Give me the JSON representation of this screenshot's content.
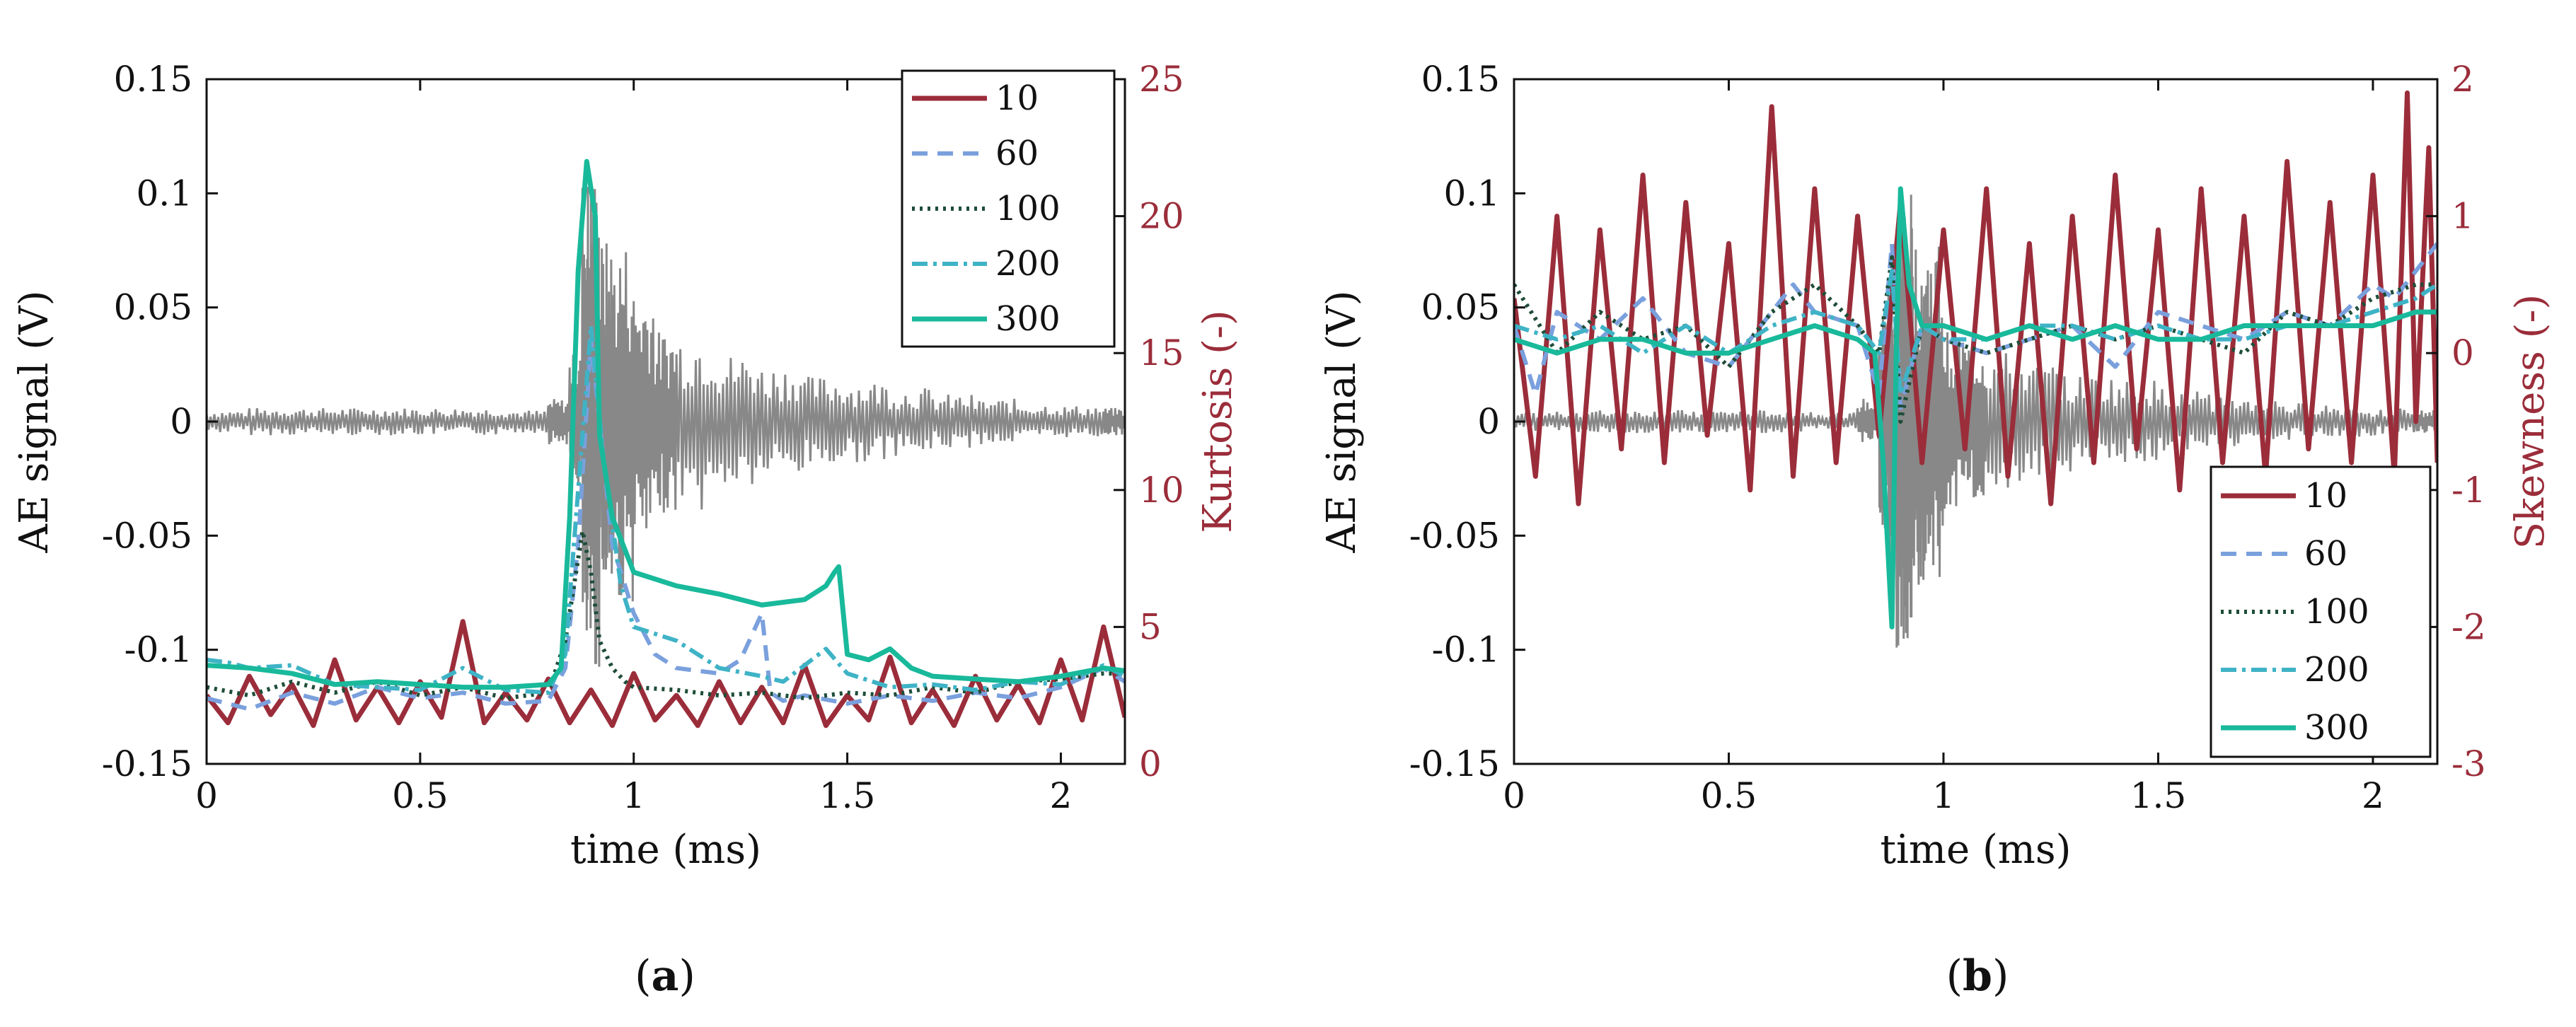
{
  "chart_data": [
    {
      "type": "line",
      "panel_label": "a",
      "panel_label_text": "(a)",
      "xlabel": "time (ms)",
      "ylabel": "AE signal (V)",
      "y2label": "Kurtosis (-)",
      "xlim": [
        0,
        2.15
      ],
      "ylim": [
        -0.15,
        0.15
      ],
      "y2lim": [
        0,
        25
      ],
      "xticks": [
        {
          "v": 0,
          "t": "0"
        },
        {
          "v": 0.5,
          "t": "0.5"
        },
        {
          "v": 1,
          "t": "1"
        },
        {
          "v": 1.5,
          "t": "1.5"
        },
        {
          "v": 2,
          "t": "2"
        }
      ],
      "yticks": [
        {
          "v": -0.15,
          "t": "-0.15"
        },
        {
          "v": -0.1,
          "t": "-0.1"
        },
        {
          "v": -0.05,
          "t": "-0.05"
        },
        {
          "v": 0,
          "t": "0"
        },
        {
          "v": 0.05,
          "t": "0.05"
        },
        {
          "v": 0.1,
          "t": "0.1"
        },
        {
          "v": 0.15,
          "t": "0.15"
        }
      ],
      "y2ticks": [
        {
          "v": 0,
          "t": "0"
        },
        {
          "v": 5,
          "t": "5"
        },
        {
          "v": 10,
          "t": "10"
        },
        {
          "v": 15,
          "t": "15"
        },
        {
          "v": 20,
          "t": "20"
        },
        {
          "v": 25,
          "t": "25"
        }
      ],
      "legend_position": "top-right",
      "ae_signal": {
        "name": "AE signal",
        "color": "#888888",
        "x": [
          0,
          0.1,
          0.2,
          0.3,
          0.4,
          0.5,
          0.6,
          0.7,
          0.8,
          0.85,
          0.88,
          0.9,
          0.92,
          0.95,
          1.0,
          1.05,
          1.1,
          1.2,
          1.3,
          1.4,
          1.5,
          1.6,
          1.7,
          1.8,
          1.9,
          2.0,
          2.1,
          2.15
        ],
        "y": [
          0,
          0.005,
          -0.006,
          0.006,
          -0.005,
          0.006,
          -0.006,
          0.005,
          -0.004,
          0.01,
          -0.03,
          0.11,
          -0.06,
          0.08,
          0.06,
          -0.04,
          0.04,
          -0.03,
          0.025,
          -0.02,
          0.018,
          -0.015,
          0.012,
          -0.01,
          0.008,
          -0.007,
          0.006,
          0
        ]
      },
      "series": [
        {
          "name": "10",
          "color": "#9b2d3a",
          "dash": "",
          "width": 7,
          "x": [
            0,
            0.05,
            0.1,
            0.15,
            0.2,
            0.25,
            0.3,
            0.35,
            0.4,
            0.45,
            0.5,
            0.55,
            0.6,
            0.65,
            0.7,
            0.75,
            0.8,
            0.85,
            0.9,
            0.95,
            1.0,
            1.05,
            1.1,
            1.15,
            1.2,
            1.25,
            1.3,
            1.35,
            1.4,
            1.45,
            1.5,
            1.55,
            1.6,
            1.65,
            1.7,
            1.75,
            1.8,
            1.85,
            1.9,
            1.95,
            2.0,
            2.05,
            2.1,
            2.15
          ],
          "y": [
            2.5,
            1.5,
            3.2,
            1.8,
            2.9,
            1.4,
            3.8,
            1.6,
            2.8,
            1.5,
            3.0,
            1.7,
            5.2,
            1.5,
            2.6,
            1.6,
            3.1,
            1.5,
            2.7,
            1.4,
            3.3,
            1.6,
            2.5,
            1.4,
            3.0,
            1.5,
            2.8,
            1.5,
            3.6,
            1.4,
            2.5,
            1.6,
            3.9,
            1.5,
            2.7,
            1.4,
            3.2,
            1.6,
            2.9,
            1.5,
            3.8,
            1.6,
            5.0,
            1.7
          ]
        },
        {
          "name": "60",
          "color": "#7aa0dd",
          "dash": "22,14",
          "width": 6,
          "x": [
            0,
            0.1,
            0.2,
            0.3,
            0.4,
            0.5,
            0.6,
            0.7,
            0.8,
            0.84,
            0.87,
            0.9,
            0.95,
            1.0,
            1.05,
            1.1,
            1.2,
            1.25,
            1.3,
            1.32,
            1.35,
            1.4,
            1.5,
            1.6,
            1.7,
            1.8,
            1.9,
            2.0,
            2.1,
            2.15
          ],
          "y": [
            2.4,
            2.0,
            2.6,
            2.2,
            2.8,
            2.4,
            2.6,
            2.2,
            2.3,
            3.5,
            8.0,
            15.5,
            8.0,
            5.5,
            4.0,
            3.5,
            3.3,
            3.8,
            5.5,
            2.6,
            2.3,
            2.5,
            2.2,
            2.5,
            2.3,
            2.6,
            2.4,
            2.8,
            3.5,
            3.0
          ]
        },
        {
          "name": "100",
          "color": "#1e4d38",
          "dash": "4,7",
          "width": 6,
          "x": [
            0,
            0.1,
            0.2,
            0.3,
            0.4,
            0.5,
            0.6,
            0.7,
            0.8,
            0.84,
            0.86,
            0.88,
            0.9,
            0.92,
            0.95,
            0.98,
            1.0,
            1.1,
            1.2,
            1.3,
            1.4,
            1.5,
            1.6,
            1.7,
            1.8,
            1.9,
            2.0,
            2.1,
            2.15
          ],
          "y": [
            2.8,
            2.5,
            3.0,
            2.6,
            3.0,
            2.5,
            2.8,
            2.4,
            2.6,
            4.5,
            6.5,
            8.5,
            7.0,
            4.5,
            3.5,
            3.0,
            2.8,
            2.7,
            2.5,
            2.6,
            2.4,
            2.6,
            2.5,
            2.8,
            2.6,
            3.0,
            3.1,
            3.3,
            3.3
          ]
        },
        {
          "name": "200",
          "color": "#3fb3c6",
          "dash": "22,8,5,8",
          "width": 6,
          "x": [
            0,
            0.05,
            0.1,
            0.2,
            0.3,
            0.4,
            0.5,
            0.6,
            0.7,
            0.8,
            0.84,
            0.87,
            0.9,
            0.93,
            0.97,
            1.0,
            1.1,
            1.2,
            1.3,
            1.35,
            1.4,
            1.45,
            1.5,
            1.6,
            1.7,
            1.8,
            1.9,
            2.0,
            2.1,
            2.15
          ],
          "y": [
            3.8,
            3.7,
            3.5,
            3.6,
            2.9,
            2.8,
            2.7,
            3.5,
            2.7,
            2.6,
            4.0,
            10.0,
            16.0,
            11.0,
            6.5,
            5.0,
            4.5,
            3.5,
            3.2,
            3.0,
            3.6,
            4.2,
            3.3,
            2.8,
            2.9,
            2.7,
            3.0,
            2.9,
            3.6,
            3.2
          ]
        },
        {
          "name": "300",
          "color": "#19b99b",
          "dash": "",
          "width": 7,
          "x": [
            0,
            0.1,
            0.2,
            0.3,
            0.4,
            0.5,
            0.6,
            0.7,
            0.8,
            0.83,
            0.85,
            0.87,
            0.89,
            0.91,
            0.92,
            0.95,
            1.0,
            1.1,
            1.2,
            1.3,
            1.4,
            1.45,
            1.47,
            1.48,
            1.5,
            1.55,
            1.6,
            1.65,
            1.7,
            1.8,
            1.9,
            2.0,
            2.1,
            2.15
          ],
          "y": [
            3.6,
            3.5,
            3.3,
            2.9,
            3.0,
            2.9,
            2.8,
            2.8,
            2.9,
            3.5,
            9.0,
            18.0,
            22.0,
            20.0,
            12.0,
            9.0,
            7.0,
            6.5,
            6.2,
            5.8,
            6.0,
            6.5,
            7.0,
            7.2,
            4.0,
            3.8,
            4.2,
            3.5,
            3.2,
            3.1,
            3.0,
            3.2,
            3.5,
            3.4
          ]
        }
      ]
    },
    {
      "type": "line",
      "panel_label": "b",
      "panel_label_text": "(b)",
      "xlabel": "time (ms)",
      "ylabel": "AE signal (V)",
      "y2label": "Skewness (-)",
      "xlim": [
        0,
        2.15
      ],
      "ylim": [
        -0.15,
        0.15
      ],
      "y2lim": [
        -3,
        2
      ],
      "xticks": [
        {
          "v": 0,
          "t": "0"
        },
        {
          "v": 0.5,
          "t": "0.5"
        },
        {
          "v": 1,
          "t": "1"
        },
        {
          "v": 1.5,
          "t": "1.5"
        },
        {
          "v": 2,
          "t": "2"
        }
      ],
      "yticks": [
        {
          "v": -0.15,
          "t": "-0.15"
        },
        {
          "v": -0.1,
          "t": "-0.1"
        },
        {
          "v": -0.05,
          "t": "-0.05"
        },
        {
          "v": 0,
          "t": "0"
        },
        {
          "v": 0.05,
          "t": "0.05"
        },
        {
          "v": 0.1,
          "t": "0.1"
        },
        {
          "v": 0.15,
          "t": "0.15"
        }
      ],
      "y2ticks": [
        {
          "v": -3,
          "t": "-3"
        },
        {
          "v": -2,
          "t": "-2"
        },
        {
          "v": -1,
          "t": "-1"
        },
        {
          "v": 0,
          "t": "0"
        },
        {
          "v": 1,
          "t": "1"
        },
        {
          "v": 2,
          "t": "2"
        }
      ],
      "legend_position": "bottom-right",
      "ae_signal": {
        "name": "AE signal",
        "color": "#888888",
        "x": [
          0,
          0.1,
          0.2,
          0.3,
          0.4,
          0.5,
          0.6,
          0.7,
          0.8,
          0.85,
          0.87,
          0.89,
          0.91,
          0.93,
          0.96,
          1.0,
          1.05,
          1.1,
          1.2,
          1.3,
          1.4,
          1.5,
          1.6,
          1.7,
          1.8,
          1.9,
          2.0,
          2.1,
          2.15
        ],
        "y": [
          0,
          0.004,
          -0.005,
          0.005,
          -0.004,
          0.005,
          -0.005,
          0.004,
          -0.004,
          0.01,
          -0.05,
          0.06,
          -0.1,
          0.08,
          -0.08,
          0.04,
          -0.035,
          0.03,
          -0.025,
          0.02,
          -0.018,
          0.015,
          -0.012,
          0.01,
          -0.008,
          0.007,
          -0.006,
          0.005,
          0
        ]
      },
      "series": [
        {
          "name": "10",
          "color": "#9b2d3a",
          "dash": "",
          "width": 7,
          "x": [
            0,
            0.05,
            0.1,
            0.15,
            0.2,
            0.25,
            0.3,
            0.35,
            0.4,
            0.45,
            0.5,
            0.55,
            0.6,
            0.65,
            0.7,
            0.75,
            0.8,
            0.85,
            0.9,
            0.95,
            1.0,
            1.05,
            1.1,
            1.15,
            1.2,
            1.25,
            1.3,
            1.35,
            1.4,
            1.45,
            1.5,
            1.55,
            1.6,
            1.65,
            1.7,
            1.75,
            1.8,
            1.85,
            1.9,
            1.95,
            2.0,
            2.05,
            2.08,
            2.1,
            2.13,
            2.15
          ],
          "y": [
            0.4,
            -0.9,
            1.0,
            -1.1,
            0.9,
            -0.7,
            1.3,
            -0.8,
            1.1,
            -0.6,
            0.8,
            -1.0,
            1.8,
            -0.9,
            1.2,
            -0.8,
            1.0,
            -0.6,
            1.1,
            -0.8,
            0.9,
            -0.7,
            1.2,
            -0.9,
            0.8,
            -1.1,
            1.0,
            -0.8,
            1.3,
            -0.7,
            0.9,
            -1.0,
            1.2,
            -0.8,
            1.0,
            -0.9,
            1.4,
            -0.7,
            1.1,
            -0.8,
            1.3,
            -0.9,
            1.9,
            -0.5,
            1.5,
            -0.8
          ]
        },
        {
          "name": "60",
          "color": "#7aa0dd",
          "dash": "22,14",
          "width": 6,
          "x": [
            0,
            0.05,
            0.1,
            0.2,
            0.3,
            0.4,
            0.5,
            0.6,
            0.65,
            0.7,
            0.8,
            0.85,
            0.88,
            0.9,
            0.95,
            1.0,
            1.1,
            1.2,
            1.3,
            1.4,
            1.5,
            1.6,
            1.7,
            1.8,
            1.9,
            2.0,
            2.05,
            2.1,
            2.15
          ],
          "y": [
            0.2,
            -0.3,
            0.3,
            0.1,
            0.4,
            0.0,
            -0.1,
            0.3,
            0.5,
            0.3,
            0.2,
            -0.3,
            0.8,
            -0.4,
            0.2,
            0.1,
            0.0,
            0.1,
            0.2,
            -0.1,
            0.3,
            0.2,
            0.1,
            0.3,
            0.2,
            0.5,
            0.4,
            0.6,
            0.8
          ]
        },
        {
          "name": "100",
          "color": "#1e4d38",
          "dash": "4,7",
          "width": 6,
          "x": [
            0,
            0.1,
            0.2,
            0.3,
            0.4,
            0.5,
            0.6,
            0.7,
            0.8,
            0.85,
            0.88,
            0.9,
            0.95,
            1.0,
            1.1,
            1.2,
            1.3,
            1.4,
            1.5,
            1.6,
            1.7,
            1.8,
            1.9,
            2.0,
            2.1,
            2.15
          ],
          "y": [
            0.5,
            0.0,
            0.3,
            0.1,
            0.2,
            -0.1,
            0.3,
            0.5,
            0.2,
            0.0,
            0.7,
            -0.5,
            0.2,
            0.1,
            0.0,
            0.1,
            0.2,
            0.1,
            0.2,
            0.1,
            0.0,
            0.3,
            0.2,
            0.4,
            0.5,
            0.5
          ]
        },
        {
          "name": "200",
          "color": "#3fb3c6",
          "dash": "22,8,5,8",
          "width": 6,
          "x": [
            0,
            0.1,
            0.2,
            0.3,
            0.4,
            0.5,
            0.6,
            0.7,
            0.8,
            0.85,
            0.88,
            0.9,
            0.95,
            1.0,
            1.1,
            1.2,
            1.3,
            1.4,
            1.5,
            1.6,
            1.7,
            1.8,
            1.9,
            2.0,
            2.1,
            2.15
          ],
          "y": [
            0.2,
            0.1,
            0.2,
            0.0,
            0.2,
            0.0,
            0.2,
            0.3,
            0.2,
            0.0,
            0.6,
            -0.3,
            0.2,
            0.1,
            0.1,
            0.2,
            0.2,
            0.1,
            0.2,
            0.1,
            0.1,
            0.2,
            0.2,
            0.3,
            0.4,
            0.5
          ]
        },
        {
          "name": "300",
          "color": "#19b99b",
          "dash": "",
          "width": 7,
          "x": [
            0,
            0.1,
            0.2,
            0.3,
            0.4,
            0.5,
            0.6,
            0.7,
            0.8,
            0.84,
            0.86,
            0.88,
            0.89,
            0.9,
            0.92,
            0.95,
            1.0,
            1.1,
            1.2,
            1.3,
            1.4,
            1.5,
            1.6,
            1.7,
            1.8,
            1.9,
            2.0,
            2.1,
            2.15
          ],
          "y": [
            0.1,
            0.0,
            0.1,
            0.1,
            0.0,
            0.0,
            0.1,
            0.2,
            0.1,
            0.0,
            -0.8,
            -2.0,
            0.0,
            1.2,
            0.5,
            0.2,
            0.2,
            0.1,
            0.2,
            0.1,
            0.2,
            0.1,
            0.1,
            0.2,
            0.2,
            0.2,
            0.2,
            0.3,
            0.3
          ]
        }
      ]
    }
  ]
}
